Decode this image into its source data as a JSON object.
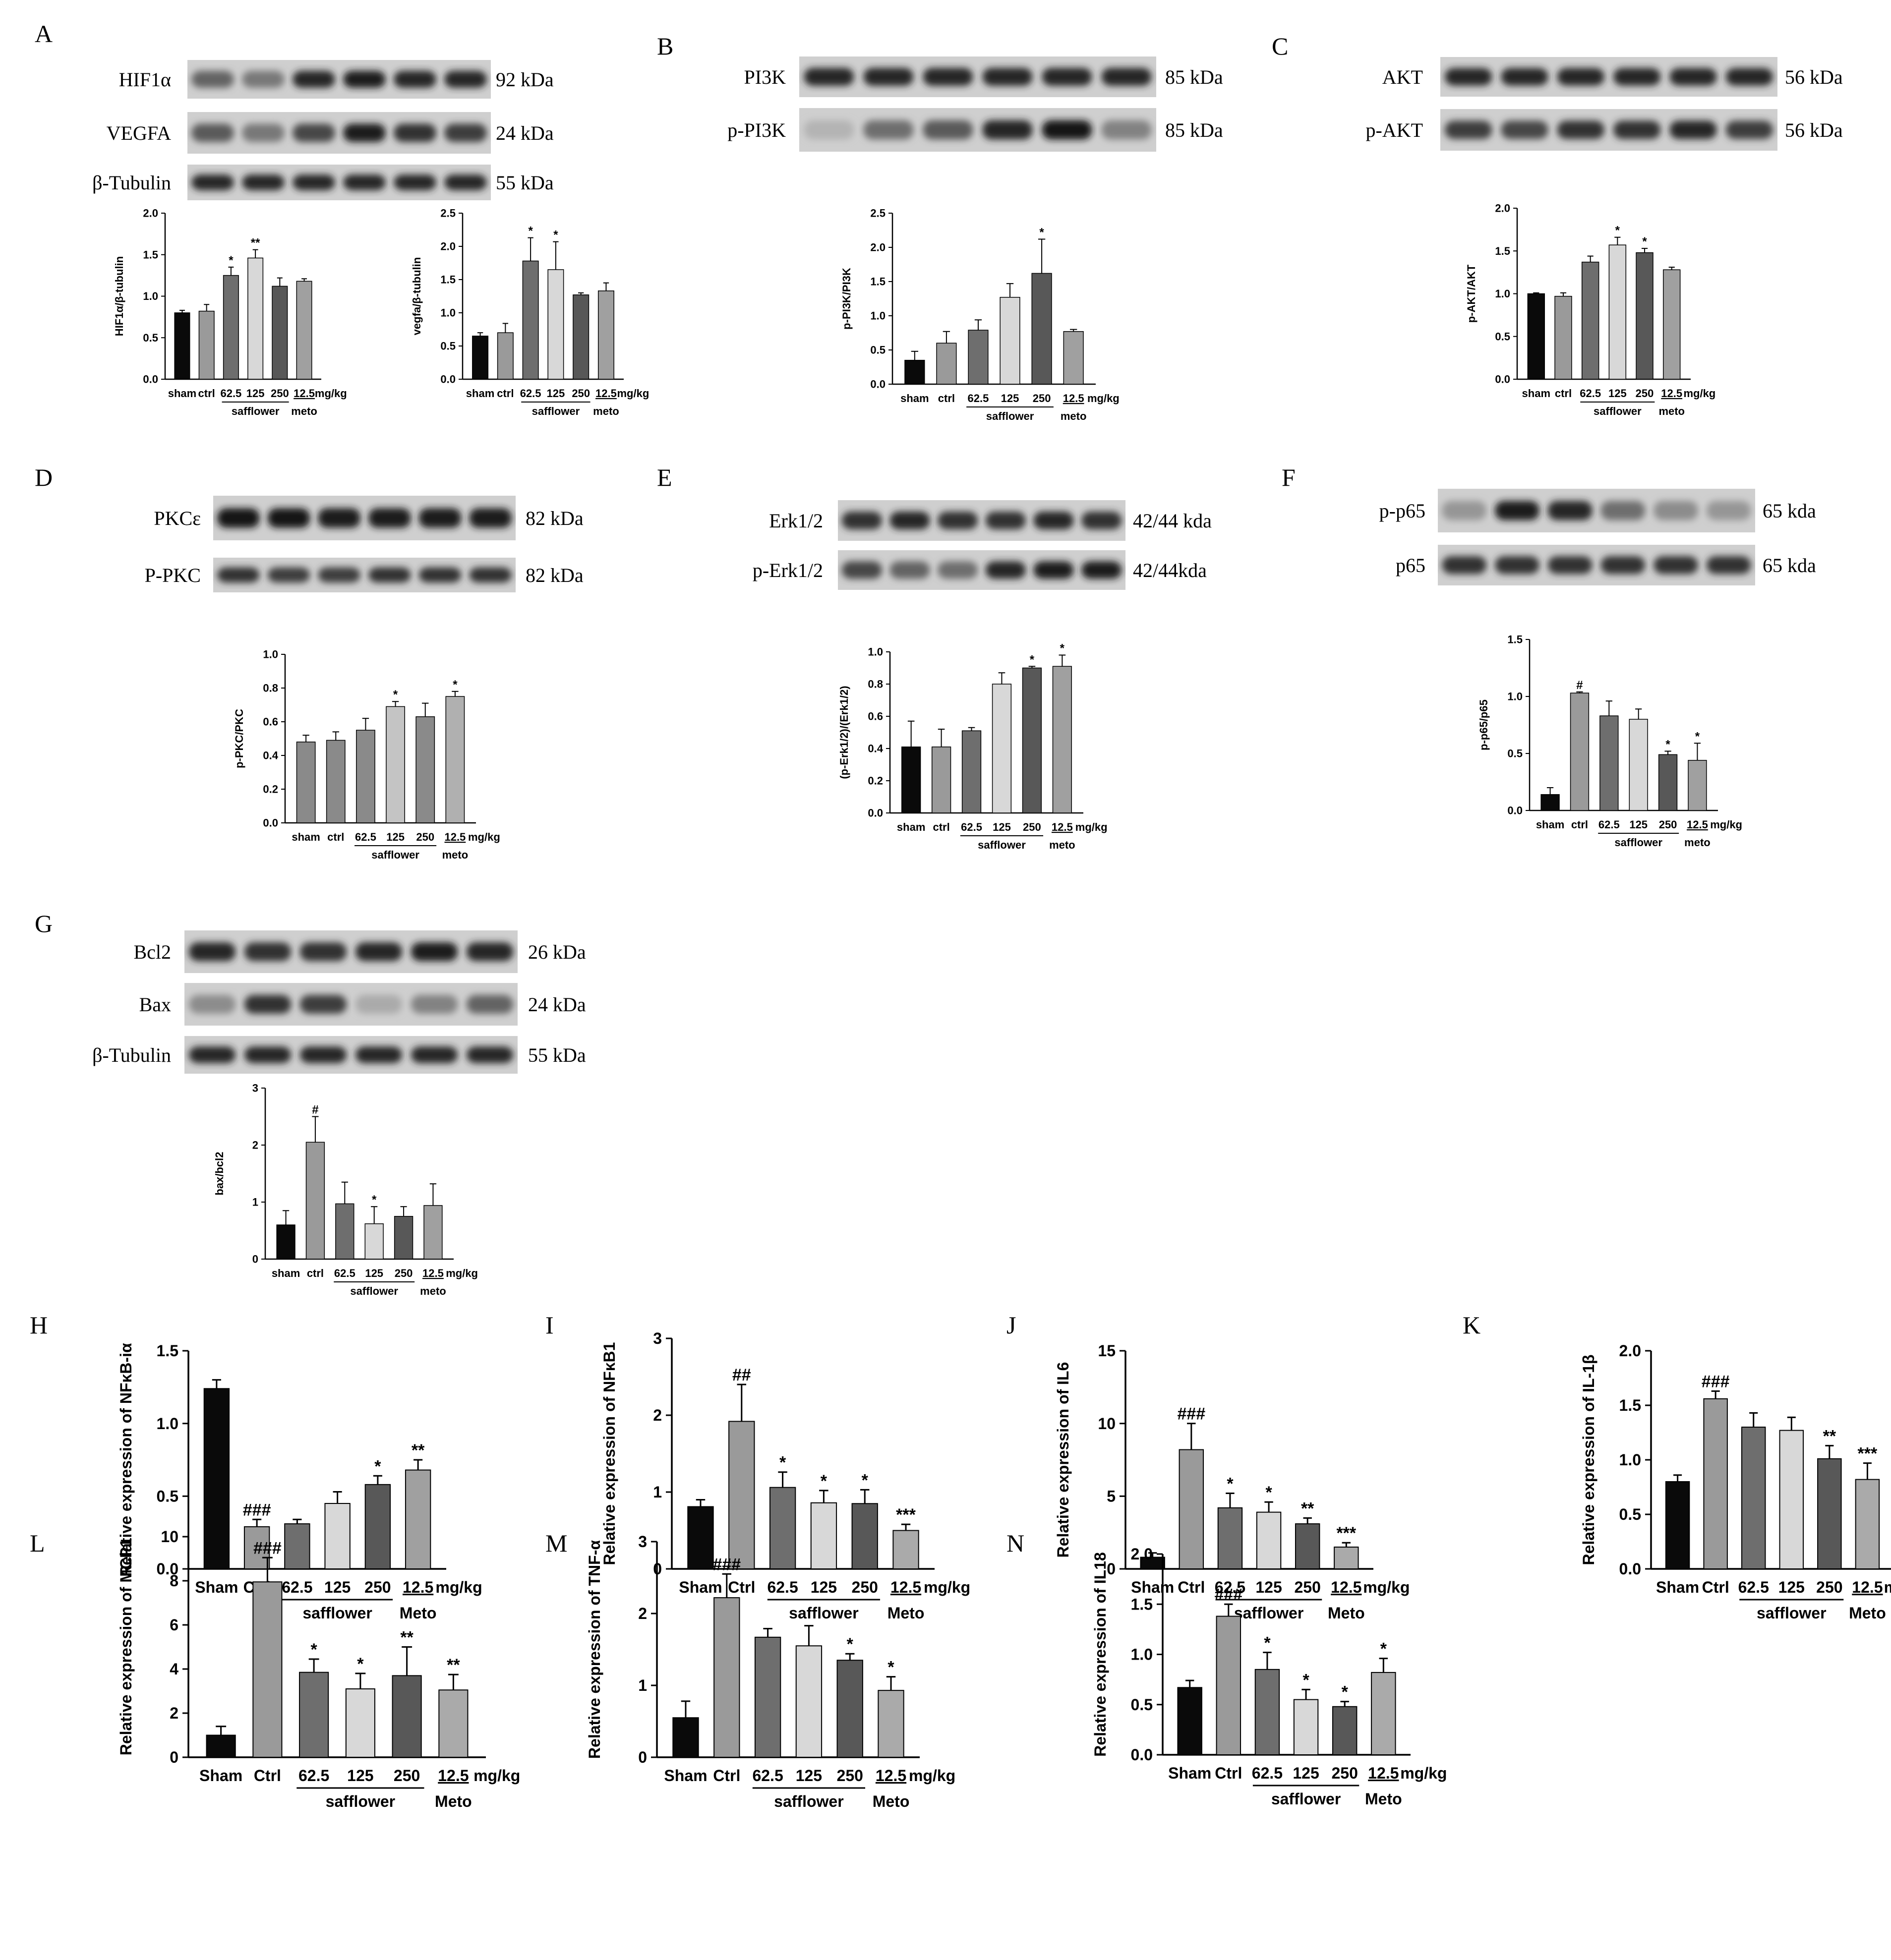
{
  "blots": [
    {
      "letter": "A",
      "rows": [
        {
          "label": "HIF1α",
          "kda": "92 kDa",
          "intensity": [
            0.55,
            0.45,
            0.85,
            0.9,
            0.85,
            0.85
          ]
        },
        {
          "label": "VEGFA",
          "kda": "24 kDa",
          "intensity": [
            0.6,
            0.45,
            0.7,
            0.9,
            0.8,
            0.75
          ]
        },
        {
          "label": "β-Tubulin",
          "kda": "55 kDa",
          "intensity": [
            0.85,
            0.85,
            0.85,
            0.85,
            0.85,
            0.85
          ]
        }
      ]
    },
    {
      "letter": "B",
      "rows": [
        {
          "label": "PI3K",
          "kda": "85 kDa",
          "intensity": [
            0.85,
            0.85,
            0.85,
            0.85,
            0.85,
            0.85
          ]
        },
        {
          "label": "p-PI3K",
          "kda": "85 kDa",
          "intensity": [
            0.15,
            0.5,
            0.6,
            0.85,
            0.95,
            0.4
          ]
        }
      ]
    },
    {
      "letter": "C",
      "rows": [
        {
          "label": "AKT",
          "kda": "56 kDa",
          "intensity": [
            0.85,
            0.85,
            0.85,
            0.85,
            0.85,
            0.85
          ]
        },
        {
          "label": "p-AKT",
          "kda": "56 kDa",
          "intensity": [
            0.75,
            0.7,
            0.8,
            0.8,
            0.85,
            0.75
          ]
        }
      ]
    },
    {
      "letter": "D",
      "rows": [
        {
          "label": "PKCε",
          "kda": "82 kDa",
          "intensity": [
            0.95,
            0.95,
            0.9,
            0.9,
            0.9,
            0.9
          ]
        },
        {
          "label": "P-PKC",
          "kda": "82 kDa",
          "intensity": [
            0.8,
            0.75,
            0.75,
            0.8,
            0.8,
            0.8
          ]
        }
      ]
    },
    {
      "letter": "E",
      "rows": [
        {
          "label": "Erk1/2",
          "kda": "42/44 kda",
          "intensity": [
            0.8,
            0.85,
            0.8,
            0.8,
            0.85,
            0.8
          ]
        },
        {
          "label": "p-Erk1/2",
          "kda": "42/44kda",
          "intensity": [
            0.7,
            0.55,
            0.5,
            0.85,
            0.9,
            0.9
          ]
        }
      ]
    },
    {
      "letter": "F",
      "rows": [
        {
          "label": "p-p65",
          "kda": "65 kda",
          "intensity": [
            0.3,
            0.9,
            0.85,
            0.5,
            0.35,
            0.3
          ]
        },
        {
          "label": "p65",
          "kda": "65 kda",
          "intensity": [
            0.8,
            0.8,
            0.8,
            0.8,
            0.8,
            0.8
          ]
        }
      ]
    },
    {
      "letter": "G",
      "rows": [
        {
          "label": "Bcl2",
          "kda": "26 kDa",
          "intensity": [
            0.85,
            0.8,
            0.8,
            0.85,
            0.9,
            0.85
          ]
        },
        {
          "label": "Bax",
          "kda": "24 kDa",
          "intensity": [
            0.35,
            0.8,
            0.75,
            0.2,
            0.4,
            0.55
          ]
        },
        {
          "label": "β-Tubulin",
          "kda": "55 kDa",
          "intensity": [
            0.85,
            0.85,
            0.85,
            0.85,
            0.85,
            0.85
          ]
        }
      ]
    }
  ],
  "chart_data": [
    {
      "type": "bar",
      "panel": "A",
      "ylabel": "HIF1α/β-tubulin",
      "ylim": [
        0,
        2.0
      ],
      "yticks": [
        "0.0",
        "0.5",
        "1.0",
        "1.5",
        "2.0"
      ],
      "categories": [
        "sham",
        "ctrl",
        "62.5",
        "125",
        "250",
        "12.5"
      ],
      "group_label": "safflower",
      "drug_label": "meto",
      "unit": "mg/kg",
      "values": [
        0.8,
        0.82,
        1.25,
        1.46,
        1.12,
        1.18
      ],
      "errors": [
        0.03,
        0.08,
        0.1,
        0.1,
        0.1,
        0.03
      ],
      "marks": [
        "",
        "",
        "*",
        "**",
        "",
        ""
      ],
      "colors": [
        "#0a0a0a",
        "#9a9a9a",
        "#6e6e6e",
        "#d8d8d8",
        "#585858",
        "#a0a0a0"
      ]
    },
    {
      "type": "bar",
      "panel": "A",
      "ylabel": "vegfa/β-tubulin",
      "ylim": [
        0,
        2.5
      ],
      "yticks": [
        "0.0",
        "0.5",
        "1.0",
        "1.5",
        "2.0",
        "2.5"
      ],
      "categories": [
        "sham",
        "ctrl",
        "62.5",
        "125",
        "250",
        "12.5"
      ],
      "group_label": "safflower",
      "drug_label": "meto",
      "unit": "mg/kg",
      "values": [
        0.65,
        0.7,
        1.78,
        1.65,
        1.27,
        1.33
      ],
      "errors": [
        0.05,
        0.14,
        0.35,
        0.42,
        0.03,
        0.12
      ],
      "marks": [
        "",
        "",
        "*",
        "*",
        "",
        ""
      ],
      "colors": [
        "#0a0a0a",
        "#9a9a9a",
        "#6e6e6e",
        "#d8d8d8",
        "#585858",
        "#a0a0a0"
      ]
    },
    {
      "type": "bar",
      "panel": "B",
      "ylabel": "p-PI3K/PI3K",
      "ylim": [
        0,
        2.5
      ],
      "yticks": [
        "0.0",
        "0.5",
        "1.0",
        "1.5",
        "2.0",
        "2.5"
      ],
      "categories": [
        "sham",
        "ctrl",
        "62.5",
        "125",
        "250",
        "12.5"
      ],
      "group_label": "safflower",
      "drug_label": "meto",
      "unit": "mg/kg",
      "values": [
        0.35,
        0.6,
        0.79,
        1.27,
        1.62,
        0.77
      ],
      "errors": [
        0.13,
        0.17,
        0.15,
        0.2,
        0.5,
        0.03
      ],
      "marks": [
        "",
        "",
        "",
        "",
        "*",
        ""
      ],
      "colors": [
        "#0a0a0a",
        "#9a9a9a",
        "#6e6e6e",
        "#d8d8d8",
        "#585858",
        "#a0a0a0"
      ]
    },
    {
      "type": "bar",
      "panel": "C",
      "ylabel": "p-AKT/AKT",
      "ylim": [
        0,
        2.0
      ],
      "yticks": [
        "0.0",
        "0.5",
        "1.0",
        "1.5",
        "2.0"
      ],
      "categories": [
        "sham",
        "ctrl",
        "62.5",
        "125",
        "250",
        "12.5"
      ],
      "group_label": "safflower",
      "drug_label": "meto",
      "unit": "mg/kg",
      "values": [
        1.0,
        0.97,
        1.37,
        1.57,
        1.48,
        1.28
      ],
      "errors": [
        0.01,
        0.04,
        0.07,
        0.09,
        0.05,
        0.03
      ],
      "marks": [
        "",
        "",
        "",
        "*",
        "*",
        ""
      ],
      "colors": [
        "#0a0a0a",
        "#9a9a9a",
        "#6e6e6e",
        "#d8d8d8",
        "#585858",
        "#a0a0a0"
      ]
    },
    {
      "type": "bar",
      "panel": "D",
      "ylabel": "p-PKC/PKC",
      "ylim": [
        0,
        1.0
      ],
      "yticks": [
        "0.0",
        "0.2",
        "0.4",
        "0.6",
        "0.8",
        "1.0"
      ],
      "categories": [
        "sham",
        "ctrl",
        "62.5",
        "125",
        "250",
        "12.5"
      ],
      "group_label": "safflower",
      "drug_label": "meto",
      "unit": "mg/kg",
      "values": [
        0.48,
        0.49,
        0.55,
        0.69,
        0.63,
        0.75
      ],
      "errors": [
        0.04,
        0.05,
        0.07,
        0.03,
        0.08,
        0.03
      ],
      "marks": [
        "",
        "",
        "",
        "*",
        "",
        "*"
      ],
      "colors": [
        "#8a8a8a",
        "#8a8a8a",
        "#8a8a8a",
        "#c4c4c4",
        "#8a8a8a",
        "#b0b0b0"
      ]
    },
    {
      "type": "bar",
      "panel": "E",
      "ylabel": "(p-Erk1/2)/(Erk1/2)",
      "ylim": [
        0,
        1.0
      ],
      "yticks": [
        "0.0",
        "0.2",
        "0.4",
        "0.6",
        "0.8",
        "1.0"
      ],
      "categories": [
        "sham",
        "ctrl",
        "62.5",
        "125",
        "250",
        "12.5"
      ],
      "group_label": "safflower",
      "drug_label": "meto",
      "unit": "mg/kg",
      "values": [
        0.41,
        0.41,
        0.51,
        0.8,
        0.9,
        0.91
      ],
      "errors": [
        0.16,
        0.11,
        0.02,
        0.07,
        0.01,
        0.07
      ],
      "marks": [
        "",
        "",
        "",
        "",
        "*",
        "*"
      ],
      "colors": [
        "#0a0a0a",
        "#9a9a9a",
        "#6e6e6e",
        "#d8d8d8",
        "#585858",
        "#a0a0a0"
      ]
    },
    {
      "type": "bar",
      "panel": "F",
      "ylabel": "p-p65/p65",
      "ylim": [
        0,
        1.5
      ],
      "yticks": [
        "0.0",
        "0.5",
        "1.0",
        "1.5"
      ],
      "categories": [
        "sham",
        "ctrl",
        "62.5",
        "125",
        "250",
        "12.5"
      ],
      "group_label": "safflower",
      "drug_label": "meto",
      "unit": "mg/kg",
      "values": [
        0.14,
        1.03,
        0.83,
        0.8,
        0.49,
        0.44
      ],
      "errors": [
        0.06,
        0.01,
        0.13,
        0.09,
        0.03,
        0.15
      ],
      "marks": [
        "",
        "#",
        "",
        "",
        "*",
        "*"
      ],
      "colors": [
        "#0a0a0a",
        "#9a9a9a",
        "#6e6e6e",
        "#d8d8d8",
        "#585858",
        "#a0a0a0"
      ]
    },
    {
      "type": "bar",
      "panel": "G",
      "ylabel": "bax/bcl2",
      "ylim": [
        0,
        3
      ],
      "yticks": [
        "0",
        "1",
        "2",
        "3"
      ],
      "categories": [
        "sham",
        "ctrl",
        "62.5",
        "125",
        "250",
        "12.5"
      ],
      "group_label": "safflower",
      "drug_label": "meto",
      "unit": "mg/kg",
      "values": [
        0.6,
        2.05,
        0.97,
        0.62,
        0.75,
        0.94
      ],
      "errors": [
        0.25,
        0.45,
        0.38,
        0.3,
        0.17,
        0.38
      ],
      "marks": [
        "",
        "#",
        "",
        "*",
        "",
        ""
      ],
      "colors": [
        "#0a0a0a",
        "#9a9a9a",
        "#6e6e6e",
        "#d8d8d8",
        "#585858",
        "#a0a0a0"
      ]
    },
    {
      "type": "bar",
      "panel": "H",
      "ylabel": "Relative expression of NFκB-iα",
      "ylim": [
        0,
        1.5
      ],
      "yticks": [
        "0.0",
        "0.5",
        "1.0",
        "1.5"
      ],
      "categories": [
        "Sham",
        "Ctrl",
        "62.5",
        "125",
        "250",
        "12.5"
      ],
      "group_label": "safflower",
      "drug_label": "Meto",
      "unit": "mg/kg",
      "values": [
        1.24,
        0.29,
        0.31,
        0.45,
        0.58,
        0.68
      ],
      "errors": [
        0.06,
        0.05,
        0.03,
        0.08,
        0.06,
        0.07
      ],
      "marks": [
        "",
        "###",
        "",
        "",
        "*",
        "**"
      ],
      "colors": [
        "#0a0a0a",
        "#9a9a9a",
        "#6e6e6e",
        "#d8d8d8",
        "#585858",
        "#a0a0a0"
      ]
    },
    {
      "type": "bar",
      "panel": "I",
      "ylabel": "Relative expression of NFκB1",
      "ylim": [
        0,
        3
      ],
      "yticks": [
        "0",
        "1",
        "2",
        "3"
      ],
      "categories": [
        "Sham",
        "Ctrl",
        "62.5",
        "125",
        "250",
        "12.5"
      ],
      "group_label": "safflower",
      "drug_label": "Meto",
      "unit": "mg/kg",
      "values": [
        0.81,
        1.92,
        1.06,
        0.86,
        0.85,
        0.5
      ],
      "errors": [
        0.09,
        0.48,
        0.2,
        0.16,
        0.18,
        0.08
      ],
      "marks": [
        "",
        "##",
        "*",
        "*",
        "*",
        "***"
      ],
      "colors": [
        "#0a0a0a",
        "#9a9a9a",
        "#6e6e6e",
        "#d8d8d8",
        "#585858",
        "#aaaaaa"
      ]
    },
    {
      "type": "bar",
      "panel": "J",
      "ylabel": "Relative expression of IL6",
      "ylim": [
        0,
        15
      ],
      "yticks": [
        "0",
        "5",
        "10",
        "15"
      ],
      "categories": [
        "Sham",
        "Ctrl",
        "62.5",
        "125",
        "250",
        "12.5"
      ],
      "group_label": "safflower",
      "drug_label": "Meto",
      "unit": "mg/kg",
      "values": [
        0.8,
        8.2,
        4.2,
        3.9,
        3.1,
        1.5
      ],
      "errors": [
        0.3,
        1.8,
        1.0,
        0.7,
        0.4,
        0.3
      ],
      "marks": [
        "",
        "###",
        "*",
        "*",
        "**",
        "***"
      ],
      "colors": [
        "#0a0a0a",
        "#9a9a9a",
        "#6e6e6e",
        "#d8d8d8",
        "#585858",
        "#aaaaaa"
      ]
    },
    {
      "type": "bar",
      "panel": "K",
      "ylabel": "Relative expression of IL-1β",
      "ylim": [
        0,
        2.0
      ],
      "yticks": [
        "0.0",
        "0.5",
        "1.0",
        "1.5",
        "2.0"
      ],
      "categories": [
        "Sham",
        "Ctrl",
        "62.5",
        "125",
        "250",
        "12.5"
      ],
      "group_label": "safflower",
      "drug_label": "Meto",
      "unit": "mg/kg",
      "values": [
        0.8,
        1.56,
        1.3,
        1.27,
        1.01,
        0.82
      ],
      "errors": [
        0.06,
        0.07,
        0.13,
        0.12,
        0.12,
        0.15
      ],
      "marks": [
        "",
        "###",
        "",
        "",
        "**",
        "***"
      ],
      "colors": [
        "#0a0a0a",
        "#9a9a9a",
        "#6e6e6e",
        "#d8d8d8",
        "#585858",
        "#aaaaaa"
      ]
    },
    {
      "type": "bar",
      "panel": "L",
      "ylabel": "Relative expression of MCP1",
      "ylim": [
        0,
        10
      ],
      "yticks": [
        "0",
        "2",
        "4",
        "6",
        "8",
        "10"
      ],
      "categories": [
        "Sham",
        "Ctrl",
        "62.5",
        "125",
        "250",
        "12.5"
      ],
      "group_label": "safflower",
      "drug_label": "Meto",
      "unit": "mg/kg",
      "values": [
        1.0,
        7.95,
        3.85,
        3.1,
        3.7,
        3.05
      ],
      "errors": [
        0.4,
        1.1,
        0.6,
        0.7,
        1.3,
        0.7
      ],
      "marks": [
        "",
        "###",
        "*",
        "*",
        "**",
        "**"
      ],
      "colors": [
        "#0a0a0a",
        "#9a9a9a",
        "#6e6e6e",
        "#d8d8d8",
        "#585858",
        "#aaaaaa"
      ]
    },
    {
      "type": "bar",
      "panel": "M",
      "ylabel": "Relative expression of TNF-α",
      "ylim": [
        0,
        3
      ],
      "yticks": [
        "0",
        "1",
        "2",
        "3"
      ],
      "categories": [
        "Sham",
        "Ctrl",
        "62.5",
        "125",
        "250",
        "12.5"
      ],
      "group_label": "safflower",
      "drug_label": "Meto",
      "unit": "mg/kg",
      "values": [
        0.55,
        2.22,
        1.67,
        1.55,
        1.35,
        0.93
      ],
      "errors": [
        0.23,
        0.33,
        0.12,
        0.28,
        0.09,
        0.19
      ],
      "marks": [
        "",
        "###",
        "",
        "",
        "*",
        "*"
      ],
      "colors": [
        "#0a0a0a",
        "#9a9a9a",
        "#6e6e6e",
        "#d8d8d8",
        "#585858",
        "#aaaaaa"
      ]
    },
    {
      "type": "bar",
      "panel": "N",
      "ylabel": "Relative expression of IL18",
      "ylim": [
        0,
        2.0
      ],
      "yticks": [
        "0.0",
        "0.5",
        "1.0",
        "1.5",
        "2.0"
      ],
      "categories": [
        "Sham",
        "Ctrl",
        "62.5",
        "125",
        "250",
        "12.5"
      ],
      "group_label": "safflower",
      "drug_label": "Meto",
      "unit": "mg/kg",
      "values": [
        0.67,
        1.38,
        0.85,
        0.55,
        0.48,
        0.82
      ],
      "errors": [
        0.07,
        0.12,
        0.17,
        0.1,
        0.05,
        0.14
      ],
      "marks": [
        "",
        "###",
        "*",
        "*",
        "*",
        "*"
      ],
      "colors": [
        "#0a0a0a",
        "#9a9a9a",
        "#6e6e6e",
        "#d8d8d8",
        "#585858",
        "#aaaaaa"
      ]
    }
  ]
}
